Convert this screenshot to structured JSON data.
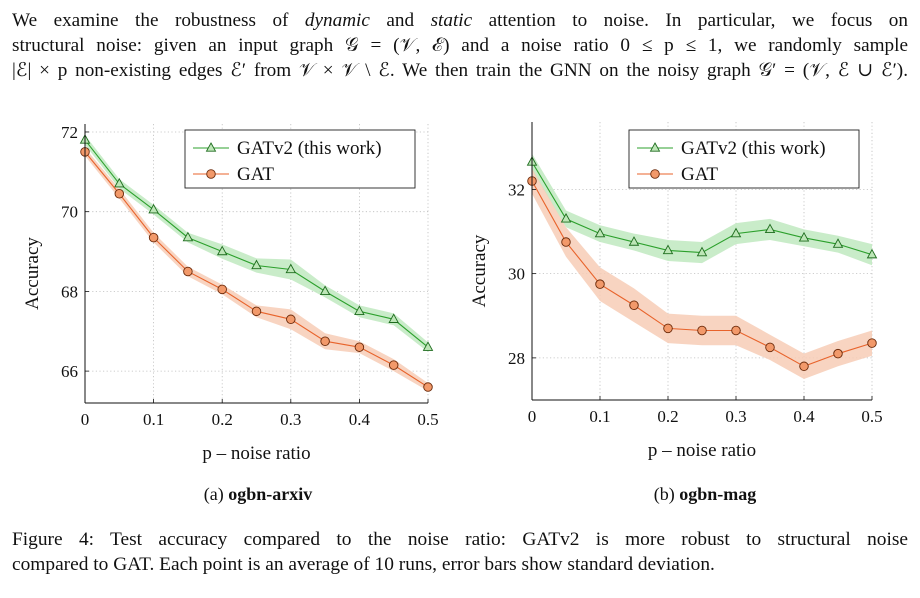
{
  "paragraph": {
    "line1": "We examine the robustness of dynamic and static attention to noise. In particular, we focus on",
    "line1_a": "We examine the robustness of ",
    "line1_dynamic": "dynamic",
    "line1_b": " and ",
    "line1_static": "static",
    "line1_c": " attention to noise. In particular, we focus on",
    "line2": "structural noise: given an input graph 𝒢 = (𝒱, ℰ) and a noise ratio 0 ≤ p ≤ 1, we randomly sample",
    "line3": "|ℰ| × p non-existing edges ℰ′ from 𝒱 × 𝒱 \\ ℰ. We then train the GNN on the noisy graph 𝒢′ = (𝒱, ℰ ∪ ℰ′)."
  },
  "subcaptions": {
    "a_prefix": "(a) ",
    "a_name": "ogbn-arxiv",
    "b_prefix": "(b) ",
    "b_name": "ogbn-mag"
  },
  "caption": {
    "line1": "Figure 4: Test accuracy compared to the noise ratio: GATv2 is more robust to structural noise",
    "line2": "compared to GAT. Each point is an average of 10 runs, error bars show standard deviation."
  },
  "colors": {
    "gatv2": "#2ca02c",
    "gat": "#e8632b",
    "gatv2_band": "#bfe9bf",
    "gat_band": "#f7cdb6",
    "grid": "#bdbdbd"
  },
  "chart_data": [
    {
      "type": "line",
      "xlabel": "p – noise ratio",
      "ylabel": "Accuracy",
      "xlim": [
        0,
        0.5
      ],
      "ylim": [
        65.2,
        72.2
      ],
      "xticks": [
        0,
        0.1,
        0.2,
        0.3,
        0.4,
        0.5
      ],
      "xtick_labels": [
        "0",
        "0.1",
        "0.2",
        "0.3",
        "0.4",
        "0.5"
      ],
      "yticks": [
        66,
        68,
        70,
        72
      ],
      "ytick_labels": [
        "66",
        "68",
        "70",
        "72"
      ],
      "grid": true,
      "legend": "top-right",
      "x": [
        0,
        0.05,
        0.1,
        0.15,
        0.2,
        0.25,
        0.3,
        0.35,
        0.4,
        0.45,
        0.5
      ],
      "series": [
        {
          "name": "GATv2 (this work)",
          "marker": "triangle",
          "values": [
            71.8,
            70.7,
            70.05,
            69.35,
            69.0,
            68.65,
            68.55,
            68.0,
            67.5,
            67.3,
            66.6
          ],
          "std": [
            0.12,
            0.12,
            0.12,
            0.12,
            0.18,
            0.18,
            0.25,
            0.15,
            0.15,
            0.15,
            0.12
          ]
        },
        {
          "name": "GAT",
          "marker": "circle",
          "values": [
            71.5,
            70.45,
            69.35,
            68.5,
            68.05,
            67.5,
            67.3,
            66.75,
            66.6,
            66.15,
            65.6
          ],
          "std": [
            0.1,
            0.12,
            0.12,
            0.12,
            0.12,
            0.15,
            0.25,
            0.2,
            0.15,
            0.15,
            0.1
          ]
        }
      ]
    },
    {
      "type": "line",
      "xlabel": "p – noise ratio",
      "ylabel": "Accuracy",
      "xlim": [
        0,
        0.5
      ],
      "ylim": [
        27.0,
        33.6
      ],
      "xticks": [
        0,
        0.1,
        0.2,
        0.3,
        0.4,
        0.5
      ],
      "xtick_labels": [
        "0",
        "0.1",
        "0.2",
        "0.3",
        "0.4",
        "0.5"
      ],
      "yticks": [
        28,
        30,
        32
      ],
      "ytick_labels": [
        "28",
        "30",
        "32"
      ],
      "grid": true,
      "legend": "top-right",
      "x": [
        0,
        0.05,
        0.1,
        0.15,
        0.2,
        0.25,
        0.3,
        0.35,
        0.4,
        0.45,
        0.5
      ],
      "series": [
        {
          "name": "GATv2 (this work)",
          "marker": "triangle",
          "values": [
            32.65,
            31.3,
            30.95,
            30.75,
            30.55,
            30.5,
            30.95,
            31.05,
            30.85,
            30.7,
            30.45
          ],
          "std": [
            0.2,
            0.2,
            0.2,
            0.2,
            0.25,
            0.25,
            0.25,
            0.25,
            0.2,
            0.2,
            0.25
          ]
        },
        {
          "name": "GAT",
          "marker": "circle",
          "values": [
            32.2,
            30.75,
            29.75,
            29.25,
            28.7,
            28.65,
            28.65,
            28.25,
            27.8,
            28.1,
            28.35
          ],
          "std": [
            0.3,
            0.35,
            0.4,
            0.4,
            0.35,
            0.35,
            0.35,
            0.3,
            0.3,
            0.3,
            0.3
          ]
        }
      ]
    }
  ]
}
